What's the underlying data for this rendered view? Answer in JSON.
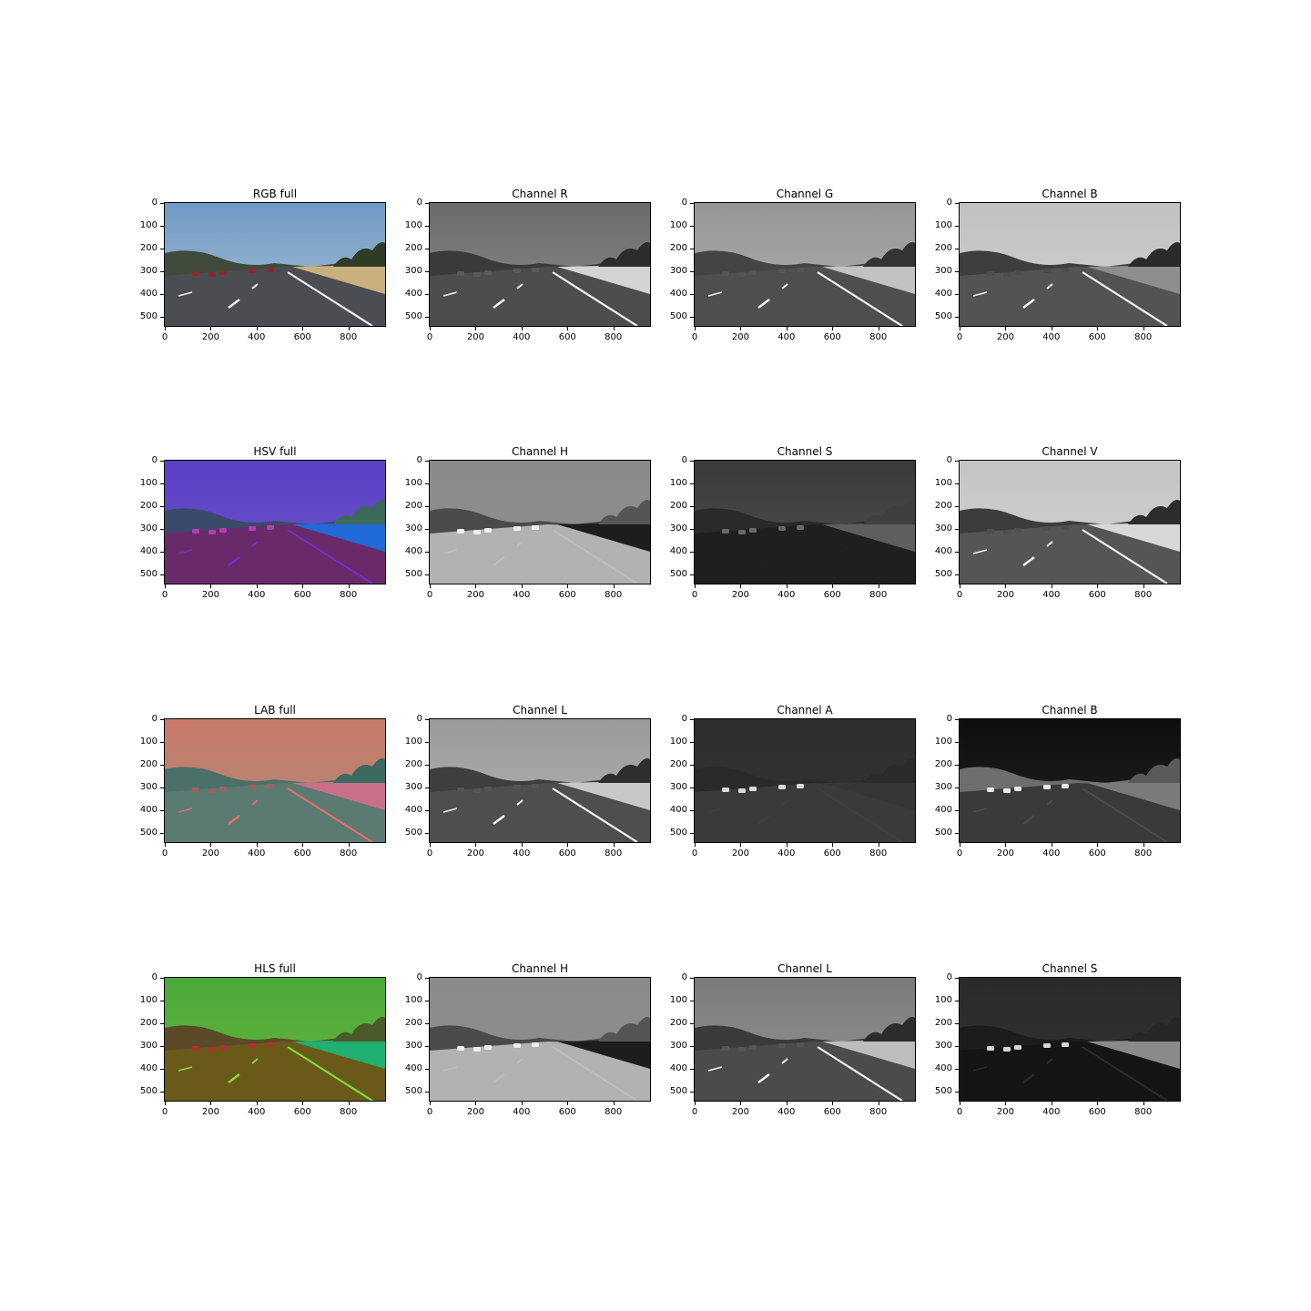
{
  "panels": [
    {
      "title": "RGB full",
      "palette": {
        "sky": "#6f9ac4",
        "sky2": "#a7bfd6",
        "hills": "#3f4a3b",
        "road": "#4c4d52",
        "grass": "#c9b07e",
        "trees": "#2f3a27",
        "lane": "#f2f2f2",
        "cars": "#8a2a2a"
      }
    },
    {
      "title": "Channel R",
      "palette": {
        "sky": "#6a6a6a",
        "sky2": "#8c8c8c",
        "hills": "#3a3a3a",
        "road": "#4d4d4d",
        "grass": "#d4d4d4",
        "trees": "#2c2c2c",
        "lane": "#f5f5f5",
        "cars": "#5a5a5a"
      }
    },
    {
      "title": "Channel G",
      "palette": {
        "sky": "#969696",
        "sky2": "#b0b0b0",
        "hills": "#444444",
        "road": "#4e4e4e",
        "grass": "#c2c2c2",
        "trees": "#333333",
        "lane": "#f5f5f5",
        "cars": "#555555"
      }
    },
    {
      "title": "Channel B",
      "palette": {
        "sky": "#c2c2c2",
        "sky2": "#d0d0d0",
        "hills": "#3e3e3e",
        "road": "#535353",
        "grass": "#8e8e8e",
        "trees": "#2a2a2a",
        "lane": "#f5f5f5",
        "cars": "#4c4c4c"
      }
    },
    {
      "title": "HSV full",
      "palette": {
        "sky": "#5b3fc6",
        "sky2": "#6b55c8",
        "hills": "#3a4a6a",
        "road": "#6a2a6a",
        "grass": "#1f6ad6",
        "trees": "#3b6a5a",
        "lane": "#7030c8",
        "cars": "#b040b0"
      }
    },
    {
      "title": "Channel H",
      "palette": {
        "sky": "#8a8a8a",
        "sky2": "#8f8f8f",
        "hills": "#4a4a4a",
        "road": "#b2b2b2",
        "grass": "#1d1d1d",
        "trees": "#555555",
        "lane": "#bdbdbd",
        "cars": "#efefef"
      }
    },
    {
      "title": "Channel S",
      "palette": {
        "sky": "#3a3a3a",
        "sky2": "#505050",
        "hills": "#2a2a2a",
        "road": "#1f1f1f",
        "grass": "#5e5e5e",
        "trees": "#3f3f3f",
        "lane": "#202020",
        "cars": "#6a6a6a"
      }
    },
    {
      "title": "Channel V",
      "palette": {
        "sky": "#c5c5c5",
        "sky2": "#d2d2d2",
        "hills": "#3c3c3c",
        "road": "#555555",
        "grass": "#d8d8d8",
        "trees": "#2c2c2c",
        "lane": "#f5f5f5",
        "cars": "#4e4e4e"
      }
    },
    {
      "title": "LAB full",
      "palette": {
        "sky": "#c87a6a",
        "sky2": "#b08a78",
        "hills": "#4a7068",
        "road": "#5a7a72",
        "grass": "#c8708a",
        "trees": "#3a6a60",
        "lane": "#e0706a",
        "cars": "#a06060"
      }
    },
    {
      "title": "Channel L",
      "palette": {
        "sky": "#9a9a9a",
        "sky2": "#b4b4b4",
        "hills": "#3e3e3e",
        "road": "#4e4e4e",
        "grass": "#c8c8c8",
        "trees": "#2e2e2e",
        "lane": "#f5f5f5",
        "cars": "#555555"
      }
    },
    {
      "title": "Channel A",
      "palette": {
        "sky": "#2e2e2e",
        "sky2": "#333333",
        "hills": "#2a2a2a",
        "road": "#3a3a3a",
        "grass": "#363636",
        "trees": "#2b2b2b",
        "lane": "#3e3e3e",
        "cars": "#d8d8d8"
      }
    },
    {
      "title": "Channel B",
      "palette": {
        "sky": "#0e0e0e",
        "sky2": "#222222",
        "hills": "#6e6e6e",
        "road": "#3a3a3a",
        "grass": "#7a7a7a",
        "trees": "#5a5a5a",
        "lane": "#4a4a4a",
        "cars": "#e8e8e8"
      }
    },
    {
      "title": "HLS full",
      "palette": {
        "sky": "#49a83a",
        "sky2": "#6ab63a",
        "hills": "#5a4a28",
        "road": "#6a5a1a",
        "grass": "#20b070",
        "trees": "#4a5a2a",
        "lane": "#7ae03a",
        "cars": "#b03030"
      }
    },
    {
      "title": "Channel H",
      "palette": {
        "sky": "#8a8a8a",
        "sky2": "#8f8f8f",
        "hills": "#4a4a4a",
        "road": "#b2b2b2",
        "grass": "#1d1d1d",
        "trees": "#555555",
        "lane": "#bdbdbd",
        "cars": "#efefef"
      }
    },
    {
      "title": "Channel L",
      "palette": {
        "sky": "#7a7a7a",
        "sky2": "#959595",
        "hills": "#3a3a3a",
        "road": "#4b4b4b",
        "grass": "#bdbdbd",
        "trees": "#2c2c2c",
        "lane": "#f5f5f5",
        "cars": "#555555"
      }
    },
    {
      "title": "Channel S",
      "palette": {
        "sky": "#2a2a2a",
        "sky2": "#333333",
        "hills": "#1c1c1c",
        "road": "#141414",
        "grass": "#8a8a8a",
        "trees": "#262626",
        "lane": "#2a2a2a",
        "cars": "#d8d8d8"
      }
    }
  ],
  "axes": {
    "x_ticks": [
      "0",
      "200",
      "400",
      "600",
      "800"
    ],
    "y_ticks": [
      "0",
      "100",
      "200",
      "300",
      "400",
      "500"
    ],
    "x_range": [
      0,
      960
    ],
    "y_range": [
      540,
      0
    ]
  }
}
